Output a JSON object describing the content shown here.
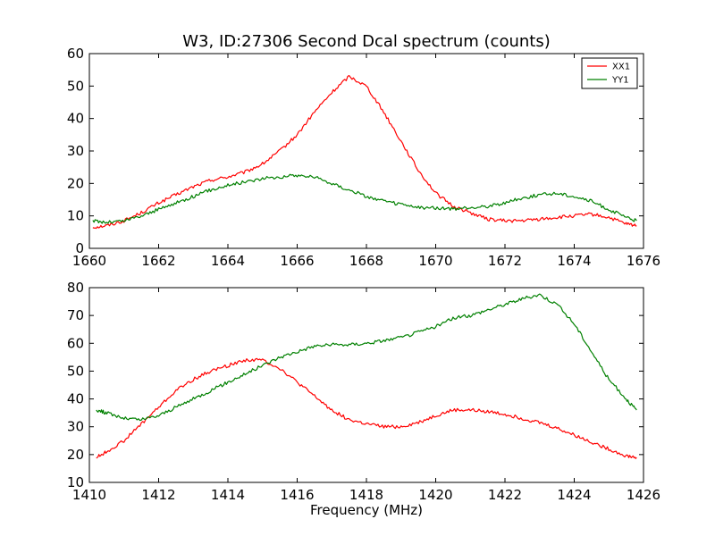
{
  "chart_data": [
    {
      "type": "line",
      "title": "W3, ID:27306 Second Dcal spectrum (counts)",
      "xlabel": "",
      "ylabel": "",
      "xlim": [
        1660,
        1676
      ],
      "ylim": [
        0,
        60
      ],
      "xticks": [
        1660,
        1662,
        1664,
        1666,
        1668,
        1670,
        1672,
        1674,
        1676
      ],
      "yticks": [
        0,
        10,
        20,
        30,
        40,
        50,
        60
      ],
      "grid": false,
      "legend": "top-right",
      "series": [
        {
          "name": "XX1",
          "color": "#ff0000",
          "x": [
            1660.1,
            1660.5,
            1661.0,
            1661.5,
            1662.0,
            1662.5,
            1663.0,
            1663.5,
            1664.0,
            1664.5,
            1665.0,
            1665.5,
            1666.0,
            1666.5,
            1667.0,
            1667.5,
            1668.0,
            1668.5,
            1669.0,
            1669.5,
            1670.0,
            1670.5,
            1671.0,
            1671.5,
            1672.0,
            1672.5,
            1673.0,
            1673.5,
            1674.0,
            1674.5,
            1675.0,
            1675.5,
            1675.8
          ],
          "y": [
            6.5,
            7,
            8.5,
            11,
            14,
            16.5,
            19,
            21,
            22,
            23.5,
            26,
            30,
            35,
            42,
            48,
            53,
            50,
            42,
            33,
            24,
            17,
            13,
            11,
            9,
            8.5,
            8.5,
            9,
            9.5,
            10,
            10.5,
            9.5,
            7.5,
            7
          ]
        },
        {
          "name": "YY1",
          "color": "#008000",
          "x": [
            1660.1,
            1660.5,
            1661.0,
            1661.5,
            1662.0,
            1662.5,
            1663.0,
            1663.5,
            1664.0,
            1664.5,
            1665.0,
            1665.5,
            1666.0,
            1666.5,
            1667.0,
            1667.5,
            1668.0,
            1668.5,
            1669.0,
            1669.5,
            1670.0,
            1670.5,
            1671.0,
            1671.5,
            1672.0,
            1672.5,
            1673.0,
            1673.5,
            1674.0,
            1674.5,
            1675.0,
            1675.5,
            1675.8
          ],
          "y": [
            8.5,
            8,
            8.5,
            10,
            12,
            14,
            16,
            18,
            19.5,
            20.5,
            21.5,
            22,
            22.5,
            22,
            20,
            18,
            16,
            14.5,
            13.5,
            12.5,
            12.5,
            12,
            12.5,
            13,
            14,
            15.5,
            16.5,
            17,
            16,
            14.5,
            12,
            9.5,
            8.5
          ]
        }
      ]
    },
    {
      "type": "line",
      "title": "",
      "xlabel": "Frequency (MHz)",
      "ylabel": "",
      "xlim": [
        1410,
        1426
      ],
      "ylim": [
        10,
        80
      ],
      "xticks": [
        1410,
        1412,
        1414,
        1416,
        1418,
        1420,
        1422,
        1424,
        1426
      ],
      "yticks": [
        10,
        20,
        30,
        40,
        50,
        60,
        70,
        80
      ],
      "grid": false,
      "series": [
        {
          "color": "#ff0000",
          "x": [
            1410.2,
            1410.5,
            1411.0,
            1411.5,
            1412.0,
            1412.5,
            1413.0,
            1413.5,
            1414.0,
            1414.5,
            1415.0,
            1415.5,
            1416.0,
            1416.5,
            1417.0,
            1417.5,
            1418.0,
            1418.5,
            1419.0,
            1419.5,
            1420.0,
            1420.5,
            1421.0,
            1421.5,
            1422.0,
            1422.5,
            1423.0,
            1423.5,
            1424.0,
            1424.5,
            1425.0,
            1425.5,
            1425.8
          ],
          "y": [
            19,
            21,
            25,
            31,
            37,
            43,
            47,
            50,
            52,
            54,
            54,
            51,
            46,
            41,
            36,
            32.5,
            31,
            30,
            30,
            31.5,
            34,
            36,
            36,
            35.5,
            34.5,
            33,
            31.5,
            29.5,
            27,
            24.5,
            22,
            19.5,
            19
          ]
        },
        {
          "color": "#008000",
          "x": [
            1410.2,
            1410.5,
            1411.0,
            1411.5,
            1412.0,
            1412.5,
            1413.0,
            1413.5,
            1414.0,
            1414.5,
            1415.0,
            1415.5,
            1416.0,
            1416.5,
            1417.0,
            1417.5,
            1418.0,
            1418.5,
            1419.0,
            1419.5,
            1420.0,
            1420.5,
            1421.0,
            1421.5,
            1422.0,
            1422.5,
            1423.0,
            1423.5,
            1424.0,
            1424.5,
            1425.0,
            1425.5,
            1425.8
          ],
          "y": [
            36,
            35,
            33,
            32.5,
            34,
            37,
            40,
            43,
            46,
            49,
            52,
            55,
            57,
            59,
            59.5,
            59.5,
            60,
            61,
            62,
            64,
            66,
            69,
            70,
            72,
            74,
            76,
            77.5,
            74,
            67,
            57,
            47,
            40,
            36
          ]
        }
      ]
    }
  ]
}
